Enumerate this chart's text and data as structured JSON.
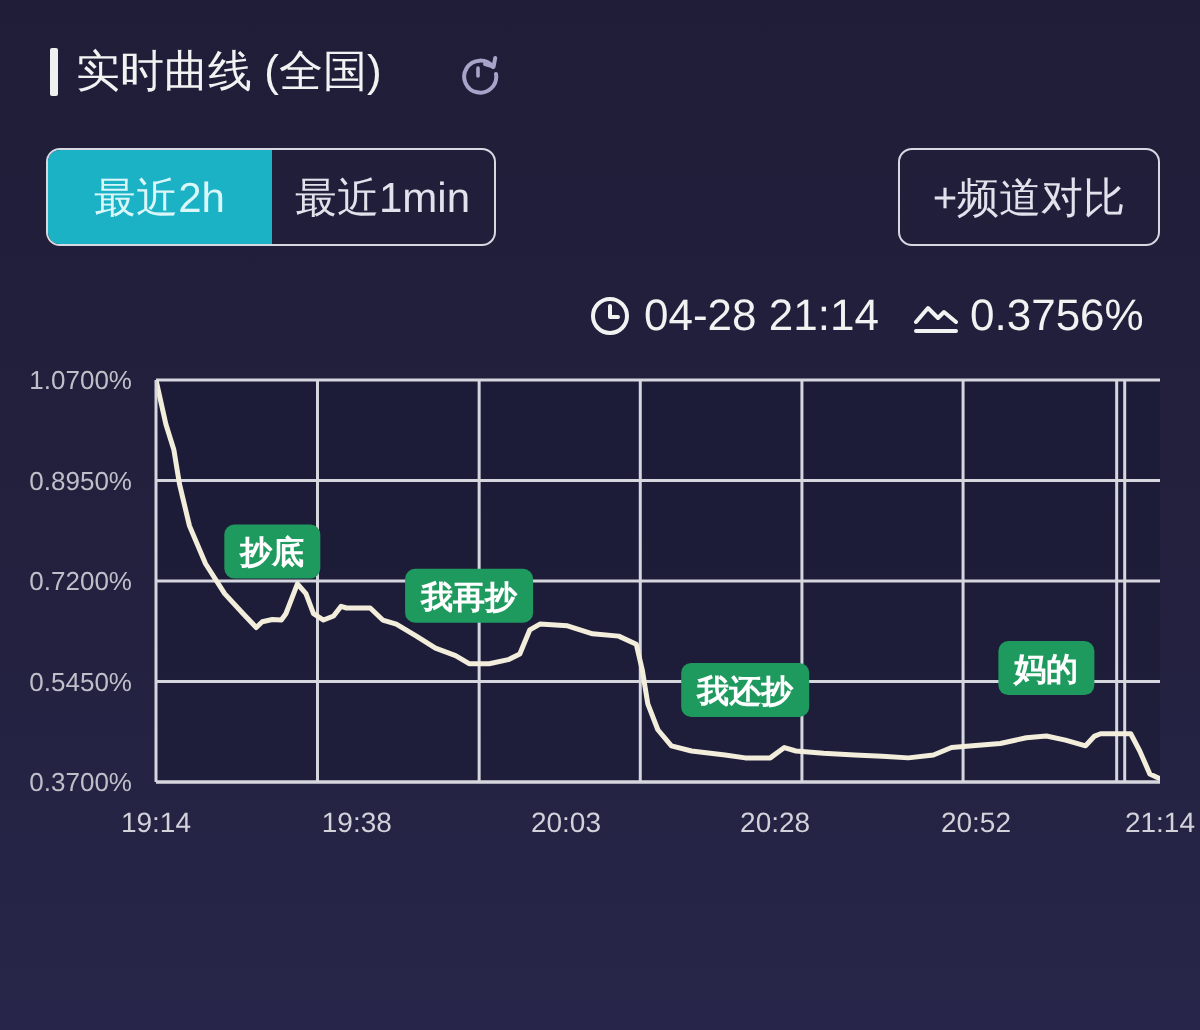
{
  "chart_data": {
    "type": "line",
    "title": "实时曲线 (全国)",
    "x": [
      19.2333,
      19.253,
      19.269,
      19.28,
      19.3,
      19.332,
      19.37,
      19.407,
      19.433,
      19.445,
      19.465,
      19.483,
      19.492,
      19.515,
      19.532,
      19.547,
      19.567,
      19.587,
      19.602,
      19.613,
      19.66,
      19.685,
      19.712,
      19.752,
      19.79,
      19.83,
      19.857,
      19.897,
      19.935,
      19.958,
      19.978,
      19.998,
      20.053,
      20.103,
      20.155,
      20.19,
      20.202,
      20.213,
      20.233,
      20.26,
      20.3,
      20.367,
      20.407,
      20.457,
      20.485,
      20.508,
      20.563,
      20.625,
      20.68,
      20.732,
      20.782,
      20.818,
      20.86,
      20.915,
      20.967,
      21.007,
      21.045,
      21.085,
      21.103,
      21.115,
      21.175,
      21.193,
      21.213,
      21.2333
    ],
    "values": [
      1.07,
      0.993,
      0.948,
      0.889,
      0.816,
      0.75,
      0.698,
      0.663,
      0.639,
      0.649,
      0.653,
      0.652,
      0.663,
      0.715,
      0.698,
      0.663,
      0.652,
      0.659,
      0.676,
      0.673,
      0.673,
      0.652,
      0.645,
      0.624,
      0.603,
      0.59,
      0.576,
      0.576,
      0.583,
      0.593,
      0.635,
      0.645,
      0.642,
      0.628,
      0.624,
      0.61,
      0.565,
      0.506,
      0.461,
      0.433,
      0.424,
      0.417,
      0.412,
      0.412,
      0.43,
      0.424,
      0.42,
      0.417,
      0.415,
      0.412,
      0.417,
      0.43,
      0.433,
      0.437,
      0.447,
      0.45,
      0.443,
      0.433,
      0.45,
      0.454,
      0.454,
      0.424,
      0.384,
      0.3756
    ],
    "color": "#f3eddb",
    "xlim": [
      19.2333,
      21.2333
    ],
    "xticks": [
      {
        "value": 19.2333,
        "label": "19:14"
      },
      {
        "value": 19.6333,
        "label": "19:38"
      },
      {
        "value": 20.05,
        "label": "20:03"
      },
      {
        "value": 20.4667,
        "label": "20:28"
      },
      {
        "value": 20.8667,
        "label": "20:52"
      },
      {
        "value": 21.2333,
        "label": "21:14"
      }
    ],
    "ylim": [
      0.37,
      1.07
    ],
    "yticks": [
      {
        "value": 0.37,
        "label": "0.3700%"
      },
      {
        "value": 0.545,
        "label": "0.5450%"
      },
      {
        "value": 0.72,
        "label": "0.7200%"
      },
      {
        "value": 0.895,
        "label": "0.8950%"
      },
      {
        "value": 1.07,
        "label": "1.0700%"
      }
    ],
    "grid": "y",
    "ref_lines": [
      {
        "axis": "x",
        "value": 19.555,
        "color": "#d6d6de"
      },
      {
        "axis": "x",
        "value": 19.877,
        "color": "#d6d6de"
      },
      {
        "axis": "x",
        "value": 20.198,
        "color": "#d6d6de"
      },
      {
        "axis": "x",
        "value": 20.52,
        "color": "#d6d6de"
      },
      {
        "axis": "x",
        "value": 20.841,
        "color": "#d6d6de"
      },
      {
        "axis": "x",
        "value": 21.147,
        "color": "#d6d6de"
      },
      {
        "axis": "x",
        "value": 21.163,
        "color": "#d6d6de"
      }
    ],
    "annotations": [
      "最近2h",
      "最近1min",
      "+频道对比",
      "04-28 21:14",
      "0.3756%",
      {
        "text": "抄底",
        "x": 19.465,
        "y": 0.653
      },
      {
        "text": "我再抄",
        "x": 19.857,
        "y": 0.576
      },
      {
        "text": "我还抄",
        "x": 20.407,
        "y": 0.412
      },
      {
        "text": "妈的",
        "x": 21.007,
        "y": 0.45
      }
    ]
  }
}
